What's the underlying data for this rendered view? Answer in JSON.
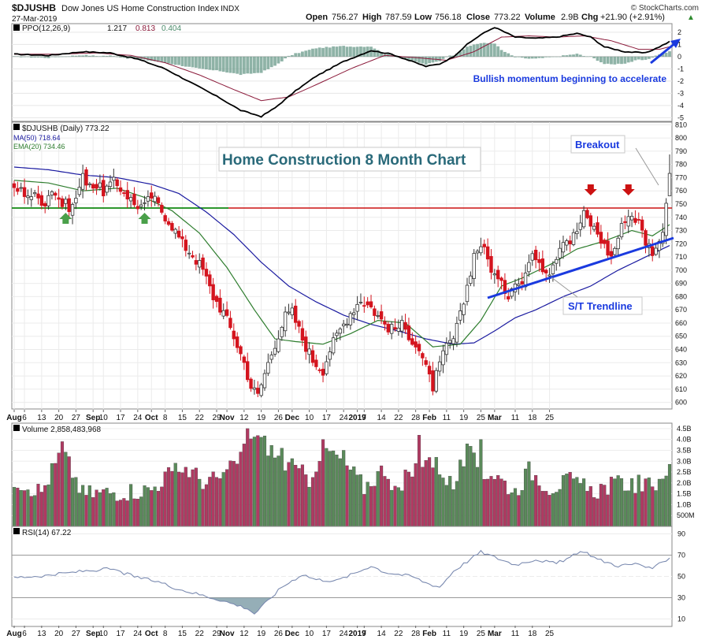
{
  "header": {
    "symbol": "$DJUSHB",
    "name": "Dow Jones US Home Construction Index",
    "exchange": "INDX",
    "date": "27-Mar-2019",
    "open_label": "Open",
    "open": "756.27",
    "high_label": "High",
    "high": "787.59",
    "low_label": "Low",
    "low": "756.18",
    "close_label": "Close",
    "close": "773.22",
    "volume_label": "Volume",
    "volume": "2.9B",
    "chg_label": "Chg",
    "chg": "+21.90 (+2.91%)",
    "chg_arrow": "▲",
    "brand": "© StockCharts.com"
  },
  "colors": {
    "up": "#4f8a56",
    "down": "#d4141e",
    "macd": "#000000",
    "signal": "#8b1a3a",
    "hist": "#6a9a8a",
    "ma50": "#1a1aa0",
    "ema20": "#2e7d2e",
    "resistance": "#cc1111",
    "support": "#118811",
    "trendline": "#1a3adf",
    "volume_up": "#5a8a5a",
    "volume_down": "#b03a62",
    "rsi": "#7a8ab0",
    "annotation": "#1a3adf",
    "chart_title": "#2a6a7a"
  },
  "ppo_panel": {
    "label": "PPO(12,26,9)",
    "ppo": "1.217",
    "signal": "0.813",
    "hist": "0.404",
    "annotation": "Bullish momentum beginning to accelerate",
    "ticks": [
      "2",
      "1",
      "0",
      "-1",
      "-2",
      "-3",
      "-4",
      "-5"
    ]
  },
  "price_panel": {
    "label": "$DJUSHB (Daily) 773.22",
    "ma_label": "MA(50) 718.64",
    "ema_label": "EMA(20) 734.46",
    "title": "Home Construction 8 Month Chart",
    "breakout_label": "Breakout",
    "trendline_label": "S/T Trendline",
    "ticks": [
      "810",
      "800",
      "790",
      "780",
      "770",
      "760",
      "750",
      "740",
      "730",
      "720",
      "710",
      "700",
      "690",
      "680",
      "670",
      "660",
      "650",
      "640",
      "630",
      "620",
      "610",
      "600"
    ],
    "x_labels": [
      "Aug",
      "6",
      "13",
      "20",
      "27",
      "Sep",
      "10",
      "17",
      "24",
      "Oct",
      "8",
      "15",
      "22",
      "29",
      "Nov",
      "12",
      "19",
      "26",
      "Dec",
      "10",
      "17",
      "24",
      "2019",
      "7",
      "14",
      "22",
      "28",
      "Feb",
      "11",
      "19",
      "25",
      "Mar",
      "11",
      "18",
      "25"
    ]
  },
  "volume_panel": {
    "label": "Volume 2,858,483,968",
    "ticks": [
      "4.5B",
      "4.0B",
      "3.5B",
      "3.0B",
      "2.5B",
      "2.0B",
      "1.5B",
      "1.0B",
      "500M"
    ]
  },
  "rsi_panel": {
    "label": "RSI(14) 67.22",
    "ticks": [
      "90",
      "70",
      "50",
      "30",
      "10"
    ],
    "x_labels": [
      "Aug",
      "6",
      "13",
      "20",
      "27",
      "Sep",
      "10",
      "17",
      "24",
      "Oct",
      "8",
      "15",
      "22",
      "29",
      "Nov",
      "12",
      "19",
      "26",
      "Dec",
      "10",
      "17",
      "24",
      "2019",
      "7",
      "14",
      "22",
      "28",
      "Feb",
      "11",
      "19",
      "25",
      "Mar",
      "11",
      "18",
      "25"
    ]
  },
  "chart_data": {
    "type": "candlestick",
    "title": "Home Construction 8 Month Chart",
    "ylim": [
      595,
      812
    ],
    "resistance_level": 747,
    "support_level": 747,
    "anchors": [
      [
        0,
        762
      ],
      [
        4,
        758
      ],
      [
        9,
        752
      ],
      [
        11,
        762
      ],
      [
        14,
        750
      ],
      [
        17,
        748
      ],
      [
        20,
        770
      ],
      [
        23,
        765
      ],
      [
        26,
        760
      ],
      [
        29,
        766
      ],
      [
        32,
        760
      ],
      [
        35,
        750
      ],
      [
        38,
        748
      ],
      [
        40,
        756
      ],
      [
        43,
        745
      ],
      [
        46,
        734
      ],
      [
        49,
        720
      ],
      [
        52,
        712
      ],
      [
        55,
        700
      ],
      [
        58,
        680
      ],
      [
        61,
        668
      ],
      [
        64,
        650
      ],
      [
        67,
        630
      ],
      [
        69,
        612
      ],
      [
        71,
        605
      ],
      [
        73,
        622
      ],
      [
        76,
        645
      ],
      [
        79,
        665
      ],
      [
        81,
        668
      ],
      [
        84,
        648
      ],
      [
        87,
        632
      ],
      [
        90,
        625
      ],
      [
        92,
        640
      ],
      [
        95,
        655
      ],
      [
        98,
        668
      ],
      [
        101,
        678
      ],
      [
        104,
        672
      ],
      [
        107,
        662
      ],
      [
        110,
        655
      ],
      [
        113,
        658
      ],
      [
        116,
        648
      ],
      [
        118,
        640
      ],
      [
        120,
        625
      ],
      [
        122,
        612
      ],
      [
        124,
        628
      ],
      [
        126,
        642
      ],
      [
        128,
        648
      ],
      [
        130,
        665
      ],
      [
        132,
        688
      ],
      [
        134,
        712
      ],
      [
        136,
        720
      ],
      [
        138,
        708
      ],
      [
        140,
        696
      ],
      [
        142,
        688
      ],
      [
        144,
        682
      ],
      [
        146,
        694
      ],
      [
        148,
        690
      ],
      [
        150,
        706
      ],
      [
        152,
        712
      ],
      [
        154,
        703
      ],
      [
        156,
        700
      ],
      [
        158,
        712
      ],
      [
        160,
        725
      ],
      [
        162,
        722
      ],
      [
        164,
        730
      ],
      [
        166,
        742
      ],
      [
        168,
        735
      ],
      [
        170,
        728
      ],
      [
        172,
        718
      ],
      [
        174,
        710
      ],
      [
        176,
        725
      ],
      [
        178,
        740
      ],
      [
        180,
        742
      ],
      [
        182,
        736
      ],
      [
        184,
        722
      ],
      [
        186,
        715
      ],
      [
        188,
        720
      ],
      [
        189,
        733
      ],
      [
        190,
        752
      ],
      [
        191,
        773
      ]
    ],
    "x_label_indices": [
      0,
      3,
      8,
      13,
      18,
      23,
      26,
      31,
      36,
      40,
      44,
      49,
      54,
      59,
      62,
      67,
      72,
      77,
      81,
      86,
      91,
      96,
      100,
      102,
      107,
      112,
      117,
      121,
      126,
      131,
      136,
      140,
      146,
      151,
      156
    ],
    "ppo_anchors": [
      [
        0,
        0.2
      ],
      [
        10,
        0.1
      ],
      [
        20,
        0.4
      ],
      [
        28,
        0.3
      ],
      [
        36,
        -0.2
      ],
      [
        44,
        -1.0
      ],
      [
        52,
        -2.2
      ],
      [
        60,
        -3.4
      ],
      [
        66,
        -4.4
      ],
      [
        72,
        -4.9
      ],
      [
        76,
        -4.2
      ],
      [
        82,
        -2.8
      ],
      [
        88,
        -1.6
      ],
      [
        96,
        -0.4
      ],
      [
        104,
        0.5
      ],
      [
        110,
        0.2
      ],
      [
        116,
        -0.4
      ],
      [
        120,
        -0.8
      ],
      [
        124,
        -0.6
      ],
      [
        128,
        0.0
      ],
      [
        132,
        1.0
      ],
      [
        136,
        1.8
      ],
      [
        140,
        2.4
      ],
      [
        146,
        1.6
      ],
      [
        152,
        1.5
      ],
      [
        158,
        1.6
      ],
      [
        164,
        1.9
      ],
      [
        168,
        1.6
      ],
      [
        172,
        0.8
      ],
      [
        178,
        0.4
      ],
      [
        184,
        0.3
      ],
      [
        188,
        0.8
      ],
      [
        191,
        1.22
      ]
    ],
    "signal_anchors": [
      [
        0,
        0.2
      ],
      [
        12,
        0.2
      ],
      [
        24,
        0.3
      ],
      [
        34,
        0.1
      ],
      [
        44,
        -0.5
      ],
      [
        54,
        -1.5
      ],
      [
        64,
        -2.7
      ],
      [
        72,
        -3.6
      ],
      [
        80,
        -3.3
      ],
      [
        88,
        -2.3
      ],
      [
        98,
        -1.0
      ],
      [
        108,
        0.1
      ],
      [
        118,
        -0.1
      ],
      [
        126,
        -0.3
      ],
      [
        134,
        0.4
      ],
      [
        142,
        1.6
      ],
      [
        150,
        1.7
      ],
      [
        158,
        1.6
      ],
      [
        166,
        1.7
      ],
      [
        174,
        1.3
      ],
      [
        182,
        0.6
      ],
      [
        188,
        0.6
      ],
      [
        191,
        0.81
      ]
    ],
    "ma50_anchors": [
      [
        0,
        778
      ],
      [
        10,
        776
      ],
      [
        20,
        772
      ],
      [
        30,
        770
      ],
      [
        40,
        765
      ],
      [
        48,
        758
      ],
      [
        56,
        744
      ],
      [
        64,
        727
      ],
      [
        72,
        706
      ],
      [
        80,
        688
      ],
      [
        88,
        676
      ],
      [
        96,
        666
      ],
      [
        104,
        659
      ],
      [
        112,
        654
      ],
      [
        120,
        648
      ],
      [
        128,
        644
      ],
      [
        134,
        645
      ],
      [
        140,
        654
      ],
      [
        146,
        664
      ],
      [
        152,
        670
      ],
      [
        160,
        680
      ],
      [
        168,
        688
      ],
      [
        176,
        700
      ],
      [
        184,
        710
      ],
      [
        191,
        718.64
      ]
    ],
    "ema20_anchors": [
      [
        0,
        768
      ],
      [
        10,
        766
      ],
      [
        20,
        760
      ],
      [
        30,
        762
      ],
      [
        38,
        755
      ],
      [
        46,
        745
      ],
      [
        54,
        728
      ],
      [
        62,
        702
      ],
      [
        70,
        670
      ],
      [
        76,
        648
      ],
      [
        82,
        646
      ],
      [
        90,
        644
      ],
      [
        98,
        652
      ],
      [
        106,
        662
      ],
      [
        114,
        660
      ],
      [
        122,
        642
      ],
      [
        130,
        644
      ],
      [
        136,
        662
      ],
      [
        142,
        688
      ],
      [
        148,
        694
      ],
      [
        156,
        704
      ],
      [
        164,
        716
      ],
      [
        172,
        722
      ],
      [
        180,
        730
      ],
      [
        186,
        726
      ],
      [
        191,
        734.46
      ]
    ],
    "volume_anchors": [
      [
        0,
        2.2
      ],
      [
        8,
        1.6
      ],
      [
        14,
        3.5
      ],
      [
        20,
        1.5
      ],
      [
        30,
        1.6
      ],
      [
        40,
        1.7
      ],
      [
        44,
        2.3
      ],
      [
        50,
        2.7
      ],
      [
        56,
        2.0
      ],
      [
        62,
        2.4
      ],
      [
        66,
        3.2
      ],
      [
        68,
        4.4
      ],
      [
        72,
        4.0
      ],
      [
        78,
        3.0
      ],
      [
        86,
        2.2
      ],
      [
        90,
        3.6
      ],
      [
        96,
        3.0
      ],
      [
        102,
        1.8
      ],
      [
        108,
        2.7
      ],
      [
        112,
        1.5
      ],
      [
        116,
        2.5
      ],
      [
        120,
        3.3
      ],
      [
        124,
        2.7
      ],
      [
        128,
        1.8
      ],
      [
        132,
        3.5
      ],
      [
        136,
        2.5
      ],
      [
        140,
        2.4
      ],
      [
        146,
        1.6
      ],
      [
        150,
        2.6
      ],
      [
        156,
        1.8
      ],
      [
        162,
        2.1
      ],
      [
        168,
        1.6
      ],
      [
        174,
        1.9
      ],
      [
        180,
        2.0
      ],
      [
        186,
        1.8
      ],
      [
        191,
        2.86
      ]
    ],
    "volume_spikes": [
      [
        14,
        3.9
      ],
      [
        68,
        4.5
      ],
      [
        72,
        4.1
      ],
      [
        78,
        3.6
      ],
      [
        90,
        4.0
      ],
      [
        96,
        3.5
      ],
      [
        114,
        2.6
      ],
      [
        118,
        4.2
      ],
      [
        122,
        2.7
      ],
      [
        132,
        3.8
      ],
      [
        136,
        4.0
      ]
    ],
    "rsi_anchors": [
      [
        0,
        49
      ],
      [
        10,
        51
      ],
      [
        20,
        55
      ],
      [
        28,
        57
      ],
      [
        36,
        49
      ],
      [
        42,
        45
      ],
      [
        48,
        38
      ],
      [
        54,
        33
      ],
      [
        60,
        28
      ],
      [
        64,
        24
      ],
      [
        68,
        20
      ],
      [
        70,
        15
      ],
      [
        72,
        21
      ],
      [
        78,
        40
      ],
      [
        84,
        52
      ],
      [
        88,
        47
      ],
      [
        94,
        46
      ],
      [
        100,
        54
      ],
      [
        104,
        60
      ],
      [
        108,
        54
      ],
      [
        116,
        50
      ],
      [
        120,
        44
      ],
      [
        124,
        40
      ],
      [
        128,
        55
      ],
      [
        132,
        64
      ],
      [
        136,
        73
      ],
      [
        140,
        68
      ],
      [
        146,
        61
      ],
      [
        152,
        66
      ],
      [
        158,
        62
      ],
      [
        162,
        68
      ],
      [
        166,
        74
      ],
      [
        170,
        66
      ],
      [
        176,
        60
      ],
      [
        182,
        62
      ],
      [
        186,
        56
      ],
      [
        188,
        62
      ],
      [
        191,
        67.22
      ]
    ],
    "breakout_marker_indices": [
      168,
      179
    ],
    "support_marker_indices": [
      15,
      38
    ]
  }
}
